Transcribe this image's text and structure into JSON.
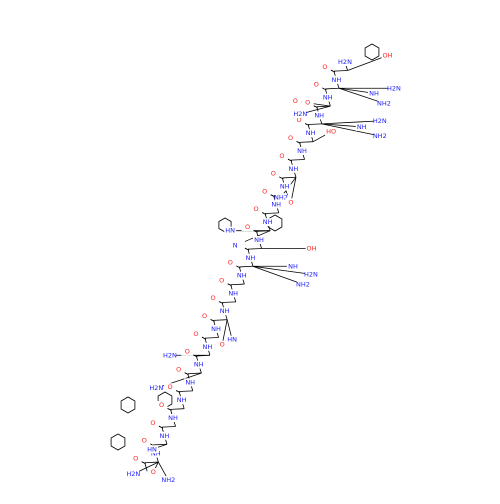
{
  "amide_nitrogens": [
    "H2N",
    "NH",
    "NH",
    "NH",
    "NH",
    "NH",
    "NH",
    "NH",
    "NH",
    "NH",
    "NH",
    "NH",
    "NH",
    "NH",
    "NH",
    "NH",
    "NH",
    "NH",
    "NH",
    "NH",
    "NH",
    "NH",
    "NH"
  ],
  "carbonyl_oxygens": [
    "O",
    "O",
    "O",
    "O",
    "O",
    "O",
    "O",
    "O",
    "O",
    "O",
    "O",
    "O",
    "O",
    "O",
    "O",
    "O",
    "O",
    "O",
    "O",
    "O",
    "O",
    "O",
    "O"
  ],
  "side_chain_labels": [
    "OH",
    "NH",
    "H2N",
    "NH2",
    "H2N",
    "O",
    "NH",
    "H2N",
    "NH2",
    "HO",
    "NH2",
    "O",
    "HN",
    "N",
    "OH",
    "NH",
    "H2N",
    "NH2",
    "HN",
    "O",
    "H2N",
    "H2N",
    "HN",
    "O",
    "H2N",
    "NH2"
  ]
}
